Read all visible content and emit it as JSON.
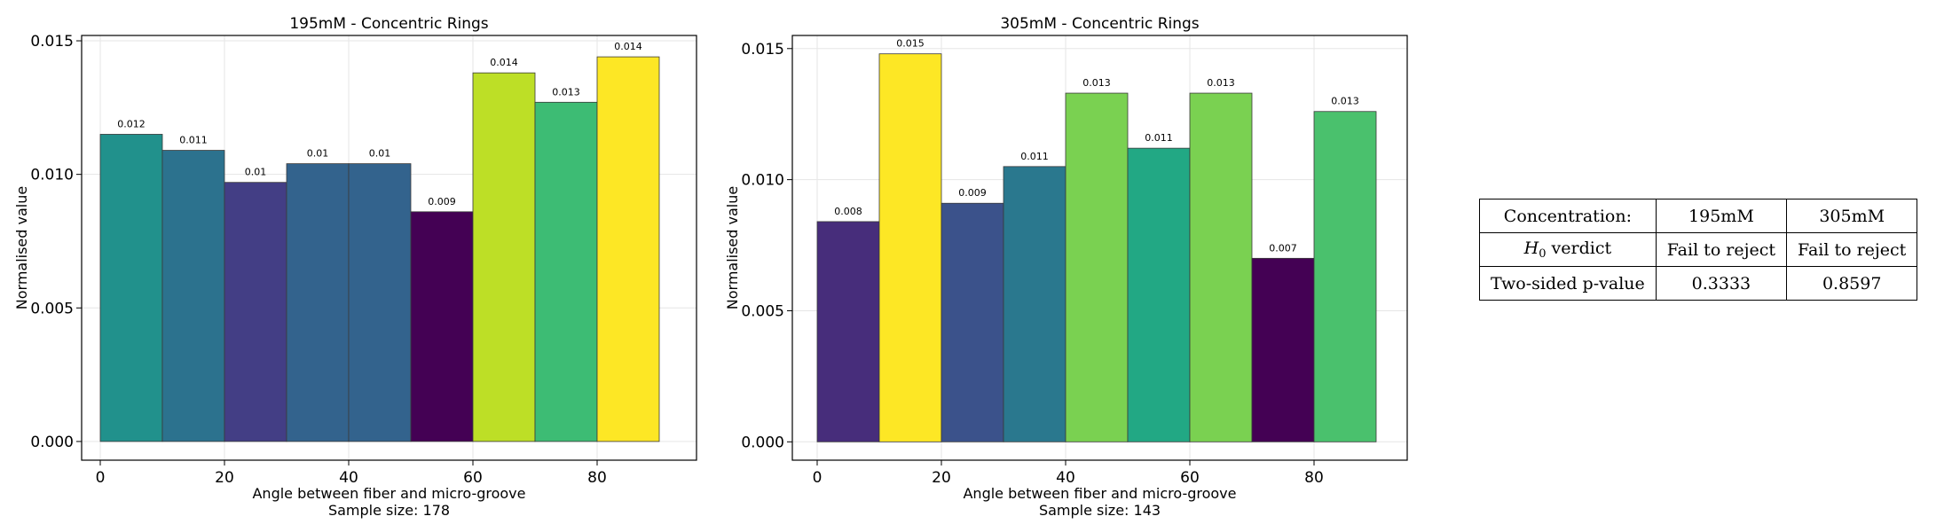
{
  "chart_data": [
    {
      "type": "bar",
      "title": "195mM - Concentric Rings",
      "xlabel": "Angle between fiber and micro-groove",
      "sample_size_label": "Sample size: 178",
      "ylabel": "Normalised value",
      "bin_edges": [
        0,
        10,
        20,
        30,
        40,
        50,
        60,
        70,
        80,
        90
      ],
      "values": [
        0.0115,
        0.0109,
        0.0097,
        0.0104,
        0.0104,
        0.0086,
        0.0138,
        0.0127,
        0.0144
      ],
      "data_labels": [
        "0.012",
        "0.011",
        "0.01",
        "0.01",
        "0.01",
        "0.009",
        "0.014",
        "0.013",
        "0.014"
      ],
      "colors": [
        "#21918c",
        "#2c728e",
        "#433e85",
        "#33638d",
        "#33638d",
        "#440154",
        "#bddf26",
        "#3dbc74",
        "#fde725"
      ],
      "xticks": [
        "0",
        "20",
        "40",
        "60",
        "80"
      ],
      "yticks": [
        "0.000",
        "0.005",
        "0.010",
        "0.015"
      ],
      "xlim": [
        -3,
        96
      ],
      "ylim": [
        -0.0007,
        0.0152
      ],
      "grid": true
    },
    {
      "type": "bar",
      "title": "305mM - Concentric Rings",
      "xlabel": "Angle between fiber and micro-groove",
      "sample_size_label": "Sample size: 143",
      "ylabel": "Normalised value",
      "bin_edges": [
        0,
        10,
        20,
        30,
        40,
        50,
        60,
        70,
        80,
        90
      ],
      "values": [
        0.0084,
        0.0148,
        0.0091,
        0.0105,
        0.0133,
        0.0112,
        0.0133,
        0.007,
        0.0126
      ],
      "data_labels": [
        "0.008",
        "0.015",
        "0.009",
        "0.011",
        "0.013",
        "0.011",
        "0.013",
        "0.007",
        "0.013"
      ],
      "colors": [
        "#472d7b",
        "#fde725",
        "#3b528b",
        "#2a788e",
        "#7ad151",
        "#22a884",
        "#7ad151",
        "#440154",
        "#4ac16d"
      ],
      "xticks": [
        "0",
        "20",
        "40",
        "60",
        "80"
      ],
      "yticks": [
        "0.000",
        "0.005",
        "0.010",
        "0.015"
      ],
      "xlim": [
        -4,
        95
      ],
      "ylim": [
        -0.0007,
        0.0155
      ],
      "grid": true
    }
  ],
  "table": {
    "header": {
      "label": "Concentration:",
      "col1": "195mM",
      "col2": "305mM"
    },
    "verdict": {
      "label_symbol": "H",
      "label_subscript": "0",
      "label_text": " verdict",
      "col1": "Fail to reject",
      "col2": "Fail to reject"
    },
    "pvalue": {
      "label": "Two-sided p-value",
      "col1": "0.3333",
      "col2": "0.8597"
    }
  }
}
